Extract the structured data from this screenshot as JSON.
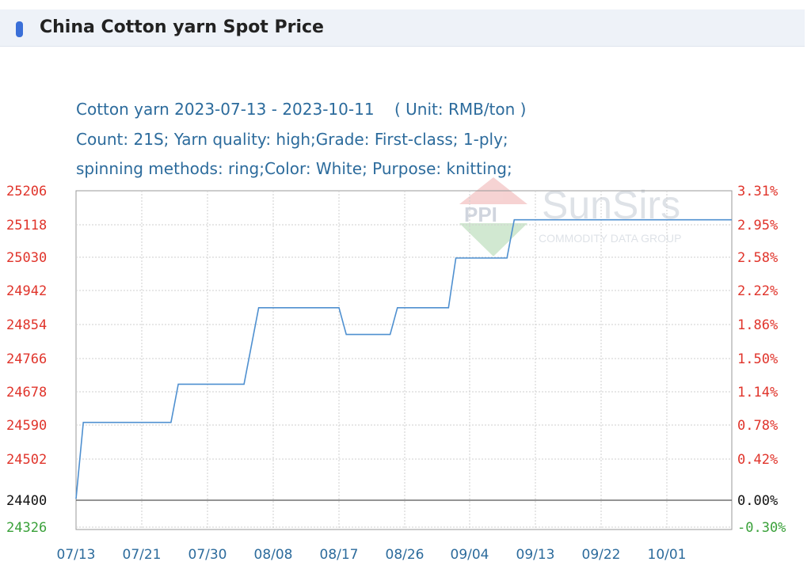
{
  "header": {
    "title": "China Cotton yarn Spot Price"
  },
  "chart_data": {
    "type": "line",
    "title_lines": [
      "Cotton yarn 2023-07-13 - 2023-10-11    ( Unit: RMB/ton )",
      "Count: 21S; Yarn quality: high;Grade: First-class; 1-ply;",
      "spinning methods: ring;Color: White; Purpose: knitting;"
    ],
    "x_ticks": [
      "07/13",
      "07/21",
      "07/30",
      "08/08",
      "08/17",
      "08/26",
      "09/04",
      "09/13",
      "09/22",
      "10/01"
    ],
    "y_ticks_left": [
      "25206",
      "25118",
      "25030",
      "24942",
      "24854",
      "24766",
      "24678",
      "24590",
      "24502",
      "24400",
      "24326"
    ],
    "y_ticks_right": [
      "3.31%",
      "2.95%",
      "2.58%",
      "2.22%",
      "1.86%",
      "1.50%",
      "1.14%",
      "0.78%",
      "0.42%",
      "0.00%",
      "-0.30%"
    ],
    "ylim": [
      24326,
      25206
    ],
    "baseline": 24400,
    "series": [
      {
        "values": [
          [
            "2023-07-13",
            24400
          ],
          [
            "2023-07-14",
            24600
          ],
          [
            "2023-07-26",
            24600
          ],
          [
            "2023-07-27",
            24700
          ],
          [
            "2023-08-05",
            24700
          ],
          [
            "2023-08-07",
            24900
          ],
          [
            "2023-08-18",
            24900
          ],
          [
            "2023-08-19",
            24830
          ],
          [
            "2023-08-25",
            24830
          ],
          [
            "2023-08-26",
            24900
          ],
          [
            "2023-09-02",
            24900
          ],
          [
            "2023-09-03",
            25030
          ],
          [
            "2023-09-10",
            25030
          ],
          [
            "2023-09-11",
            25130
          ],
          [
            "2023-10-11",
            25130
          ]
        ]
      }
    ],
    "grid": true,
    "colors": {
      "line": "#4f90d0",
      "left_axis": "#e0342b",
      "right_axis": "#e0342b",
      "baseline_label": "#111111",
      "below_label": "#3aa13a"
    }
  },
  "watermark": {
    "brand": "SunSirs",
    "tagline": "COMMODITY DATA GROUP",
    "logo": "PPI"
  }
}
